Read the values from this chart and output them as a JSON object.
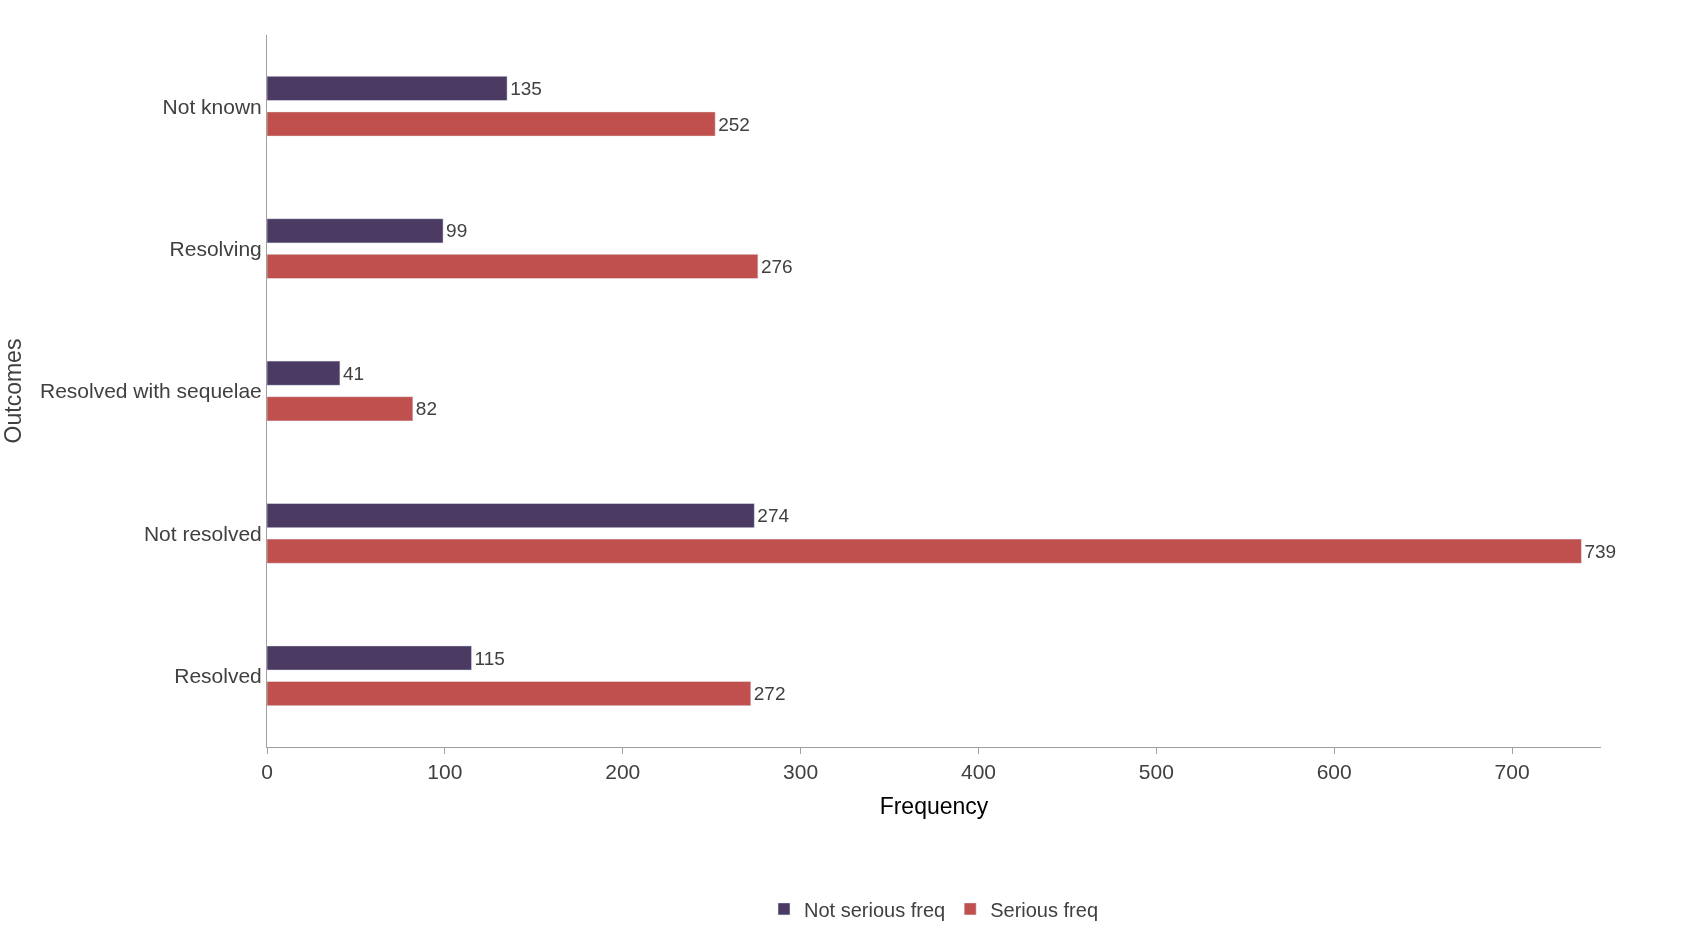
{
  "chart_data": {
    "type": "bar",
    "orientation": "horizontal",
    "xlabel": "Frequency",
    "ylabel": "Outcomes",
    "categories": [
      "Not known",
      "Resolving",
      "Resolved with sequelae",
      "Not resolved",
      "Resolved"
    ],
    "series": [
      {
        "name": "Not serious freq",
        "color": "#4b3b62",
        "values": [
          135,
          99,
          41,
          274,
          115
        ]
      },
      {
        "name": "Serious freq",
        "color": "#c0504d",
        "values": [
          252,
          276,
          82,
          739,
          272
        ]
      }
    ],
    "xlim": [
      0,
      750
    ],
    "xticks": [
      0,
      100,
      200,
      300,
      400,
      500,
      600,
      700
    ],
    "data_labels": true,
    "legend": "bottom"
  }
}
